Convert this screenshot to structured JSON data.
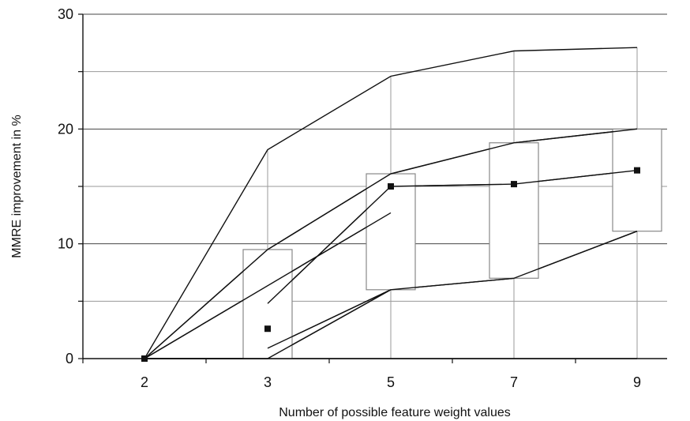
{
  "chart_data": {
    "type": "box-and-line",
    "xlabel": "Number of possible feature weight values",
    "ylabel": "MMRE improvement in %",
    "categories": [
      "2",
      "3",
      "5",
      "7",
      "9"
    ],
    "ylim": [
      0,
      30
    ],
    "yticks": [
      0,
      10,
      20,
      30
    ],
    "grid": "horizontal every 5",
    "series": [
      {
        "role": "max",
        "values": [
          0,
          18.2,
          24.6,
          26.8,
          27.1
        ]
      },
      {
        "role": "upper",
        "values": [
          0,
          9.5,
          16.1,
          18.8,
          20.0
        ]
      },
      {
        "role": "mean",
        "values": [
          0,
          2.6,
          15.0,
          15.2,
          16.4
        ]
      },
      {
        "role": "lower",
        "values": [
          0,
          0,
          6.0,
          7.0,
          11.1
        ]
      },
      {
        "role": "min",
        "values": [
          0,
          0,
          0,
          0,
          0
        ]
      }
    ],
    "boxes": [
      {
        "category": "3",
        "low": 0,
        "high": 9.5
      },
      {
        "category": "5",
        "low": 6.0,
        "high": 16.1
      },
      {
        "category": "7",
        "low": 7.0,
        "high": 18.8
      },
      {
        "category": "9",
        "low": 11.1,
        "high": 20.0
      }
    ],
    "connectors": [
      {
        "from": [
          "2",
          0
        ],
        "to": [
          "5",
          12.7
        ]
      },
      {
        "from": [
          "3",
          4.8
        ],
        "to": [
          "5",
          15.0
        ]
      },
      {
        "from": [
          "3",
          0.9
        ],
        "to": [
          "5",
          6.0
        ]
      },
      {
        "from": [
          "5",
          15.0
        ],
        "to": [
          "7",
          15.2
        ]
      },
      {
        "from": [
          "7",
          15.2
        ],
        "to": [
          "9",
          16.4
        ]
      }
    ]
  },
  "colors": {
    "line": "#111111",
    "grid": "#444444",
    "gridline_light": "#9a9a9a",
    "box_fill": "#ffffff",
    "box_stroke": "#888888",
    "marker": "#111111"
  }
}
